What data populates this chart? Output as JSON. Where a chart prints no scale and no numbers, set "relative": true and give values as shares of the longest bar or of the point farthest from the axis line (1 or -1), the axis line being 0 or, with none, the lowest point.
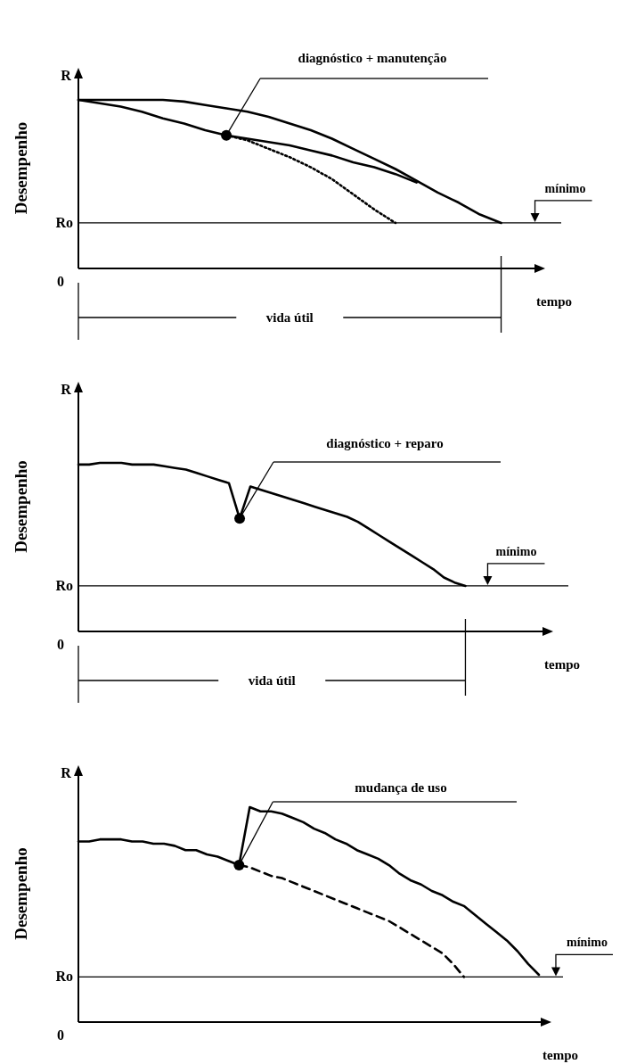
{
  "chart_data": [
    {
      "type": "line",
      "xlabel": "tempo",
      "ylabel": "Desempenho",
      "relative": true,
      "categories": [
        null,
        null,
        null,
        null,
        null,
        null,
        null,
        null,
        null,
        null,
        null,
        null,
        null,
        null,
        null,
        null,
        null,
        null,
        null,
        null,
        null,
        null,
        null
      ],
      "series": [
        {
          "color": "#000000",
          "line_style": "solid",
          "values": [
            1.0,
            1.0,
            1.0,
            1.0,
            1.0,
            0.99,
            0.97,
            0.95,
            0.93,
            0.9,
            0.86,
            0.82,
            0.77,
            0.71,
            0.65,
            0.59,
            0.52,
            0.45,
            0.39,
            0.32,
            0.27,
            null,
            null
          ]
        },
        {
          "color": "#000000",
          "line_style": "solid",
          "values": [
            1.0,
            0.98,
            0.96,
            0.93,
            0.89,
            0.86,
            0.82,
            0.79,
            0.77,
            0.75,
            0.73,
            0.7,
            0.67,
            0.63,
            0.6,
            0.56,
            0.51,
            null,
            null,
            null,
            null,
            null,
            null
          ]
        },
        {
          "color": "#000000",
          "line_style": "dotted",
          "values": [
            null,
            null,
            null,
            null,
            null,
            null,
            null,
            0.79,
            0.76,
            0.71,
            0.66,
            0.6,
            0.53,
            0.44,
            0.35,
            0.27,
            null,
            null,
            null,
            null,
            null,
            null,
            null
          ]
        }
      ],
      "ref_lines": [
        {
          "axis": "y",
          "value": 0.27,
          "label": "Ro"
        }
      ],
      "annotations": [
        "R",
        "0",
        "diagnóstico + manutenção",
        "mínimo",
        "vida útil"
      ]
    },
    {
      "type": "line",
      "xlabel": "tempo",
      "ylabel": "Desempenho",
      "relative": true,
      "categories": [
        null,
        null,
        null,
        null,
        null,
        null,
        null,
        null,
        null,
        null,
        null,
        null,
        null,
        null,
        null,
        null,
        null,
        null,
        null,
        null,
        null,
        null,
        null,
        null,
        null,
        null,
        null,
        null,
        null,
        null,
        null,
        null,
        null,
        null,
        null,
        null,
        null,
        null,
        null,
        null,
        null,
        null,
        null,
        null,
        null
      ],
      "series": [
        {
          "color": "#000000",
          "line_style": "solid",
          "values": [
            0.99,
            0.99,
            1.0,
            1.0,
            1.0,
            0.99,
            0.99,
            0.99,
            0.98,
            0.97,
            0.96,
            0.94,
            0.92,
            0.9,
            0.88,
            0.67,
            0.86,
            0.84,
            0.82,
            0.8,
            0.78,
            0.76,
            0.74,
            0.72,
            0.7,
            0.68,
            0.65,
            0.61,
            0.57,
            0.53,
            0.49,
            0.45,
            0.41,
            0.37,
            0.32,
            0.29,
            0.27,
            null,
            null,
            null,
            null,
            null,
            null,
            null,
            null
          ]
        }
      ],
      "ref_lines": [
        {
          "axis": "y",
          "value": 0.27,
          "label": "Ro"
        }
      ],
      "annotations": [
        "R",
        "0",
        "diagnóstico + reparo",
        "mínimo",
        "vida útil"
      ]
    },
    {
      "type": "line",
      "xlabel": "tempo",
      "ylabel": "Desempenho",
      "relative": true,
      "categories": [
        null,
        null,
        null,
        null,
        null,
        null,
        null,
        null,
        null,
        null,
        null,
        null,
        null,
        null,
        null,
        null,
        null,
        null,
        null,
        null,
        null,
        null,
        null,
        null,
        null,
        null,
        null,
        null,
        null,
        null,
        null,
        null,
        null,
        null,
        null,
        null,
        null,
        null,
        null,
        null,
        null,
        null,
        null,
        null,
        null
      ],
      "series": [
        {
          "color": "#000000",
          "line_style": "solid",
          "values": [
            0.84,
            0.84,
            0.85,
            0.85,
            0.85,
            0.84,
            0.84,
            0.83,
            0.83,
            0.82,
            0.8,
            0.8,
            0.78,
            0.77,
            0.75,
            0.73,
            1.0,
            0.98,
            0.98,
            0.97,
            0.95,
            0.93,
            0.9,
            0.88,
            0.85,
            0.83,
            0.8,
            0.78,
            0.76,
            0.73,
            0.69,
            0.66,
            0.64,
            0.61,
            0.59,
            0.56,
            0.54,
            0.5,
            0.46,
            0.42,
            0.38,
            0.33,
            0.27,
            0.22,
            null
          ]
        },
        {
          "color": "#000000",
          "line_style": "dashed",
          "values": [
            null,
            null,
            null,
            null,
            null,
            null,
            null,
            null,
            null,
            null,
            null,
            null,
            null,
            null,
            null,
            0.73,
            0.72,
            0.7,
            0.68,
            0.67,
            0.65,
            0.63,
            0.61,
            0.59,
            0.57,
            0.55,
            0.53,
            0.51,
            0.49,
            0.47,
            0.44,
            0.41,
            0.38,
            0.35,
            0.32,
            0.27,
            0.21,
            null,
            null,
            null,
            null,
            null,
            null,
            null,
            null
          ]
        }
      ],
      "ref_lines": [
        {
          "axis": "y",
          "value": 0.21,
          "label": "Ro"
        }
      ],
      "annotations": [
        "R",
        "0",
        "mudança de uso",
        "mínimo"
      ]
    }
  ]
}
